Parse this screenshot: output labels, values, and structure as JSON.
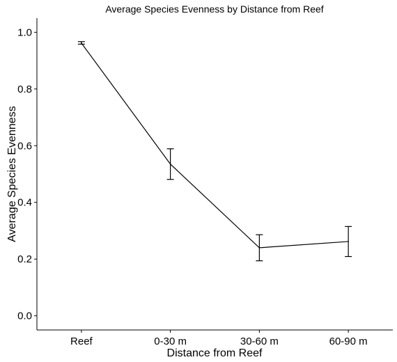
{
  "chart_data": {
    "type": "line",
    "title": "Average Species Evenness by Distance from Reef",
    "xlabel": "Distance from Reef",
    "ylabel": "Average Species Evenness",
    "categories": [
      "Reef",
      "0-30 m",
      "30-60 m",
      "60-90 m"
    ],
    "series": [
      {
        "values": [
          0.962,
          0.535,
          0.24,
          0.262
        ],
        "error_low": [
          0.958,
          0.481,
          0.194,
          0.209
        ],
        "error_high": [
          0.967,
          0.589,
          0.286,
          0.315
        ]
      }
    ],
    "yticks": [
      0.0,
      0.2,
      0.4,
      0.6,
      0.8,
      1.0
    ],
    "ytick_labels": [
      "0.0",
      "0.2",
      "0.4",
      "0.6",
      "0.8",
      "1.0"
    ],
    "ylim": [
      -0.05,
      1.05
    ],
    "grid": false,
    "colors": {
      "line": "#000000",
      "axis": "#000000",
      "background": "#ffffff"
    }
  }
}
